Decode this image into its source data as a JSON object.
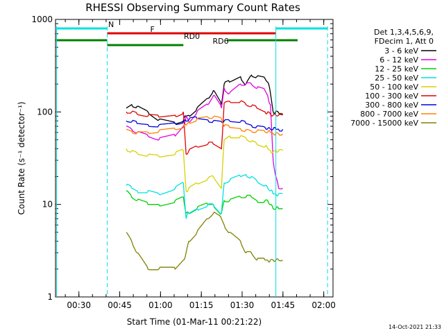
{
  "chart_data": {
    "type": "line",
    "title": "RHESSI Observing Summary Count Rates",
    "xlabel": "Start Time (01-Mar-11 00:21:22)",
    "ylabel": "Count Rate (s⁻¹ detector⁻¹)",
    "x_unit": "minutes after 00:21:22",
    "xlim": [
      0,
      102
    ],
    "ylim": [
      1,
      1000
    ],
    "yscale": "log",
    "x_ticks": [
      {
        "value": 8.6,
        "label": "00:30"
      },
      {
        "value": 23.6,
        "label": "00:45"
      },
      {
        "value": 38.6,
        "label": "01:00"
      },
      {
        "value": 53.6,
        "label": "01:15"
      },
      {
        "value": 68.6,
        "label": "01:30"
      },
      {
        "value": 83.6,
        "label": "01:45"
      },
      {
        "value": 98.6,
        "label": "02:00"
      }
    ],
    "y_ticks": [
      {
        "value": 1,
        "label": "1"
      },
      {
        "value": 10,
        "label": "10"
      },
      {
        "value": 100,
        "label": "100"
      },
      {
        "value": 1000,
        "label": "1000"
      }
    ],
    "grid": false,
    "legend_position": "right",
    "legend_header": [
      "Det 1,3,4,5,6,9,",
      "FDecim 1, Att 0"
    ],
    "footer_date": "14-Oct-2021 21:33",
    "series": [
      {
        "name": "3 - 6 keV",
        "color": "#000000",
        "x": [
          0,
          6,
          12,
          18,
          22,
          26,
          28,
          30,
          34,
          38,
          44,
          47,
          48,
          49,
          52,
          56,
          58,
          61,
          62,
          64,
          68,
          70,
          72,
          74,
          77,
          78,
          79,
          80,
          81,
          82,
          83.5,
          84
        ],
        "values": [
          0,
          0,
          0,
          0,
          0,
          110,
          120,
          115,
          100,
          82,
          75,
          80,
          90,
          92,
          110,
          140,
          170,
          120,
          200,
          210,
          240,
          200,
          250,
          240,
          230,
          210,
          160,
          100,
          102,
          98,
          96,
          0
        ]
      },
      {
        "name": "6 - 12 keV",
        "color": "#e000e0",
        "x": [
          0,
          6,
          12,
          18,
          22,
          26,
          28,
          30,
          34,
          38,
          44,
          47,
          48,
          49,
          52,
          56,
          58,
          61,
          62,
          64,
          68,
          70,
          72,
          74,
          77,
          78,
          79,
          80,
          81,
          82,
          83.5,
          84
        ],
        "values": [
          0,
          0,
          0,
          0,
          0,
          70,
          65,
          60,
          55,
          50,
          55,
          70,
          90,
          78,
          100,
          120,
          150,
          110,
          180,
          160,
          200,
          200,
          200,
          180,
          170,
          150,
          120,
          30,
          20,
          15,
          15,
          0
        ]
      },
      {
        "name": "12 - 25 keV",
        "color": "#00d000",
        "x": [
          0,
          6,
          12,
          18,
          22,
          26,
          28,
          30,
          34,
          38,
          44,
          47,
          48,
          49,
          52,
          56,
          58,
          61,
          62,
          64,
          68,
          70,
          72,
          74,
          77,
          78,
          79,
          80,
          81,
          82,
          83.5,
          84
        ],
        "values": [
          0,
          0,
          0,
          0,
          0,
          14,
          12,
          11,
          10,
          10,
          11,
          12,
          8,
          8,
          9,
          10,
          10,
          8,
          11,
          11,
          12,
          12,
          12,
          11,
          11,
          11,
          10,
          9,
          9,
          9,
          9,
          0
        ]
      },
      {
        "name": "25 - 50 keV",
        "color": "#00e0e0",
        "x": [
          0,
          6,
          12,
          18,
          22,
          26,
          28,
          30,
          34,
          38,
          44,
          47,
          48,
          49,
          52,
          56,
          58,
          61,
          62,
          64,
          68,
          70,
          72,
          74,
          77,
          78,
          79,
          80,
          81,
          82,
          83.5,
          84
        ],
        "values": [
          0,
          0,
          0,
          0,
          0,
          16,
          15,
          14,
          14,
          13,
          15,
          17,
          7,
          8,
          9,
          10,
          10,
          8,
          17,
          18,
          20,
          21,
          20,
          18,
          16,
          15,
          14,
          13,
          13,
          13,
          13,
          0
        ]
      },
      {
        "name": "50 - 100 keV",
        "color": "#d8d000",
        "x": [
          0,
          6,
          12,
          18,
          22,
          26,
          28,
          30,
          34,
          38,
          44,
          47,
          48,
          49,
          52,
          56,
          58,
          61,
          62,
          64,
          68,
          70,
          72,
          74,
          77,
          78,
          79,
          80,
          81,
          82,
          83.5,
          84
        ],
        "values": [
          0,
          0,
          0,
          0,
          0,
          40,
          38,
          36,
          34,
          33,
          35,
          38,
          14,
          15,
          17,
          19,
          20,
          15,
          50,
          55,
          55,
          52,
          48,
          45,
          42,
          40,
          38,
          37,
          38,
          38,
          38,
          0
        ]
      },
      {
        "name": "100 - 300 keV",
        "color": "#e00000",
        "x": [
          0,
          6,
          12,
          18,
          22,
          26,
          28,
          30,
          34,
          38,
          44,
          47,
          48,
          49,
          52,
          56,
          58,
          61,
          62,
          64,
          68,
          70,
          72,
          74,
          77,
          78,
          79,
          80,
          81,
          82,
          83.5,
          84
        ],
        "values": [
          0,
          0,
          0,
          0,
          0,
          100,
          100,
          95,
          90,
          88,
          92,
          100,
          35,
          38,
          42,
          45,
          45,
          40,
          125,
          130,
          130,
          120,
          115,
          110,
          100,
          100,
          95,
          92,
          92,
          92,
          92,
          0
        ]
      },
      {
        "name": "300 - 800 keV",
        "color": "#0000e0",
        "x": [
          0,
          6,
          12,
          18,
          22,
          26,
          28,
          30,
          34,
          38,
          44,
          47,
          48,
          49,
          52,
          56,
          58,
          61,
          62,
          64,
          68,
          70,
          72,
          74,
          77,
          78,
          79,
          80,
          81,
          82,
          83.5,
          84
        ],
        "values": [
          0,
          0,
          0,
          0,
          0,
          80,
          78,
          75,
          73,
          72,
          75,
          78,
          80,
          82,
          85,
          82,
          80,
          78,
          80,
          80,
          78,
          75,
          72,
          70,
          68,
          66,
          65,
          65,
          65,
          65,
          65,
          0
        ]
      },
      {
        "name": "800 - 7000 keV",
        "color": "#ff8000",
        "x": [
          0,
          6,
          12,
          18,
          22,
          26,
          28,
          30,
          34,
          38,
          44,
          47,
          48,
          49,
          52,
          56,
          58,
          61,
          62,
          64,
          68,
          70,
          72,
          74,
          77,
          78,
          79,
          80,
          81,
          82,
          83.5,
          84
        ],
        "values": [
          0,
          0,
          0,
          0,
          0,
          65,
          62,
          60,
          60,
          62,
          65,
          68,
          72,
          78,
          84,
          88,
          88,
          84,
          70,
          68,
          66,
          64,
          62,
          62,
          61,
          60,
          60,
          59,
          59,
          58,
          58,
          0
        ]
      },
      {
        "name": "7000 - 15000 keV",
        "color": "#808000",
        "x": [
          0,
          6,
          12,
          18,
          22,
          26,
          28,
          30,
          34,
          38,
          44,
          47,
          48,
          49,
          52,
          56,
          58,
          61,
          62,
          64,
          68,
          70,
          72,
          74,
          77,
          78,
          79,
          80,
          81,
          82,
          83.5,
          84
        ],
        "values": [
          0,
          0,
          0,
          0,
          0,
          5,
          4,
          3,
          2,
          2,
          2,
          2.5,
          3,
          4,
          5,
          7,
          8,
          7,
          6,
          5,
          4,
          3,
          3,
          2.5,
          2.5,
          2.5,
          2.5,
          2.5,
          2.5,
          2.5,
          2.5,
          0
        ]
      }
    ],
    "annotations": [
      {
        "label": "N",
        "color": "#00e0e0",
        "x": [
          0,
          19,
          81,
          100
        ]
      },
      {
        "label": "F",
        "color": "#e00000",
        "x": [
          19,
          81
        ]
      },
      {
        "label": "RD0",
        "color": "#008000",
        "x": [
          0,
          19,
          63,
          89
        ]
      },
      {
        "label": "RD6",
        "color": "#008000",
        "x": [
          19,
          47
        ]
      }
    ]
  }
}
